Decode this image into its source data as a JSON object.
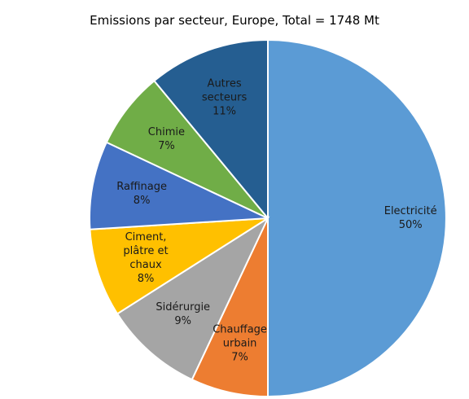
{
  "chart_data": {
    "type": "pie",
    "title": "Emissions par secteur, Europe, Total = 1748 Mt",
    "categories": [
      "Electricité",
      "Chauffage urbain",
      "Sidérurgie",
      "Ciment, plâtre et chaux",
      "Raffinage",
      "Chimie",
      "Autres secteurs"
    ],
    "values": [
      50,
      7,
      9,
      8,
      8,
      7,
      11
    ],
    "value_labels": [
      "50%",
      "7%",
      "9%",
      "8%",
      "8%",
      "7%",
      "11%"
    ],
    "colors": [
      "#5b9bd5",
      "#ed7d31",
      "#a5a5a5",
      "#ffc000",
      "#4472c4",
      "#70ad47",
      "#255e91"
    ]
  }
}
